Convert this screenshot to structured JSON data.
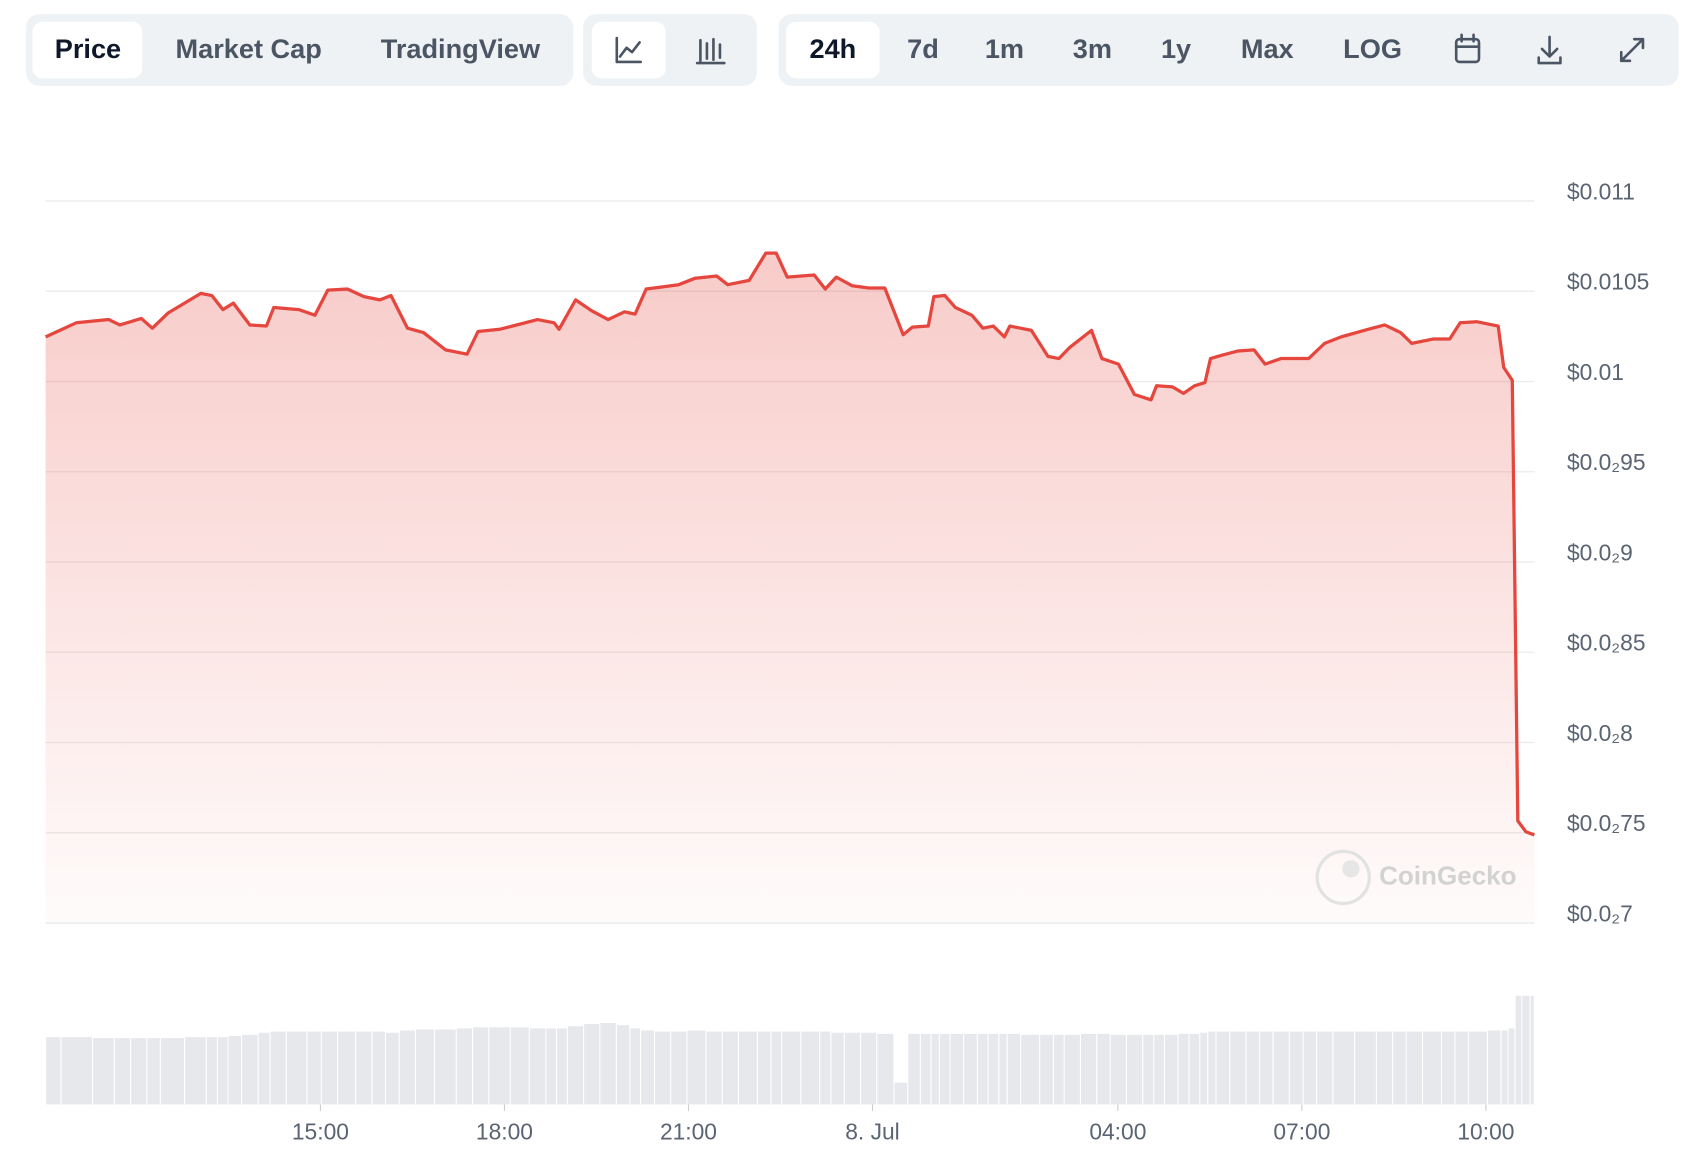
{
  "toolbar": {
    "tabs": [
      "Price",
      "Market Cap",
      "TradingView"
    ],
    "ranges": [
      "24h",
      "7d",
      "1m",
      "3m",
      "1y",
      "Max",
      "LOG"
    ]
  },
  "watermark": "CoinGecko",
  "chart_data": {
    "type": "line",
    "color": "#e5463d",
    "volume_color": "#e6e8ec",
    "x": [
      10.52,
      11.02,
      11.55,
      11.73,
      12.08,
      12.26,
      12.52,
      13.05,
      13.23,
      13.41,
      13.58,
      13.85,
      14.12,
      14.24,
      14.65,
      14.91,
      15.12,
      15.44,
      15.71,
      15.97,
      16.15,
      16.42,
      16.68,
      17.04,
      17.39,
      17.57,
      17.92,
      18.27,
      18.54,
      18.81,
      18.89,
      19.16,
      19.42,
      19.69,
      19.96,
      20.13,
      20.31,
      20.58,
      20.84,
      21.11,
      21.46,
      21.64,
      21.99,
      22.26,
      22.43,
      22.61,
      23.05,
      23.23,
      23.41,
      23.67,
      23.94,
      24.2,
      24.5,
      24.65,
      24.91,
      25.0,
      25.18,
      25.35,
      25.62,
      25.8,
      25.97,
      26.15,
      26.24,
      26.59,
      26.86,
      27.04,
      27.21,
      27.57,
      27.74,
      28.01,
      28.27,
      28.54,
      28.63,
      28.89,
      29.07,
      29.25,
      29.42,
      29.51,
      29.69,
      29.96,
      30.22,
      30.4,
      30.66,
      30.93,
      31.11,
      31.37,
      31.64,
      32.08,
      32.35,
      32.61,
      32.79,
      33.14,
      33.41,
      33.58,
      33.85,
      34.2,
      34.29,
      34.43,
      34.52,
      34.65,
      34.79
    ],
    "values": [
      0.010247,
      0.010325,
      0.010343,
      0.010313,
      0.010349,
      0.010295,
      0.01038,
      0.010488,
      0.010476,
      0.010398,
      0.010434,
      0.010313,
      0.010307,
      0.01041,
      0.010398,
      0.010367,
      0.010506,
      0.010512,
      0.01047,
      0.010452,
      0.010476,
      0.010295,
      0.010271,
      0.010175,
      0.010151,
      0.010277,
      0.010289,
      0.010319,
      0.010343,
      0.010325,
      0.010289,
      0.010452,
      0.010392,
      0.010343,
      0.010386,
      0.010373,
      0.010512,
      0.010524,
      0.010536,
      0.010572,
      0.010584,
      0.010536,
      0.01056,
      0.010711,
      0.010711,
      0.010578,
      0.01059,
      0.010512,
      0.010578,
      0.01053,
      0.010518,
      0.010518,
      0.010259,
      0.010301,
      0.010307,
      0.01047,
      0.010476,
      0.01041,
      0.010367,
      0.010295,
      0.010307,
      0.010247,
      0.010307,
      0.010283,
      0.010139,
      0.010127,
      0.010187,
      0.010283,
      0.010127,
      0.010096,
      0.009928,
      0.009898,
      0.009976,
      0.00997,
      0.009934,
      0.009976,
      0.009994,
      0.010127,
      0.010145,
      0.010169,
      0.010175,
      0.010096,
      0.010127,
      0.010127,
      0.010127,
      0.010211,
      0.010247,
      0.010289,
      0.010313,
      0.010271,
      0.010211,
      0.010235,
      0.010235,
      0.010325,
      0.010331,
      0.010307,
      0.010078,
      0.010006,
      0.007566,
      0.007506,
      0.007488
    ],
    "volume": [
      62,
      62,
      61,
      61,
      61,
      61,
      61,
      62,
      62,
      62,
      63,
      64,
      66,
      67,
      67,
      67,
      67,
      67,
      67,
      67,
      66,
      68,
      69,
      69,
      70,
      71,
      71,
      71,
      70,
      70,
      70,
      72,
      74,
      75,
      73,
      70,
      68,
      67,
      67,
      68,
      67,
      67,
      67,
      67,
      67,
      67,
      67,
      67,
      66,
      66,
      66,
      65,
      20,
      65,
      65,
      65,
      65,
      65,
      65,
      65,
      65,
      65,
      65,
      64,
      64,
      64,
      64,
      65,
      65,
      64,
      64,
      64,
      64,
      64,
      65,
      65,
      66,
      67,
      67,
      67,
      67,
      67,
      67,
      67,
      67,
      67,
      67,
      67,
      67,
      67,
      67,
      67,
      67,
      67,
      67,
      68,
      68,
      70,
      100,
      100,
      100
    ],
    "xlim": [
      10.52,
      34.79
    ],
    "xticks": [
      {
        "value": 15,
        "label": "15:00"
      },
      {
        "value": 18,
        "label": "18:00"
      },
      {
        "value": 21,
        "label": "21:00"
      },
      {
        "value": 24,
        "label": "8. Jul"
      },
      {
        "value": 28,
        "label": "04:00"
      },
      {
        "value": 31,
        "label": "07:00"
      },
      {
        "value": 34,
        "label": "10:00"
      }
    ],
    "ylim": [
      0.007,
      0.011
    ],
    "yticks": [
      {
        "value": 0.011,
        "label": "$0.011"
      },
      {
        "value": 0.0105,
        "label": "$0.0105"
      },
      {
        "value": 0.01,
        "label": "$0.01"
      },
      {
        "value": 0.0095,
        "label": "$0.0₂95"
      },
      {
        "value": 0.009,
        "label": "$0.0₂9"
      },
      {
        "value": 0.0085,
        "label": "$0.0₂85"
      },
      {
        "value": 0.008,
        "label": "$0.0₂8"
      },
      {
        "value": 0.0075,
        "label": "$0.0₂75"
      },
      {
        "value": 0.007,
        "label": "$0.0₂7"
      }
    ],
    "grid": true
  }
}
